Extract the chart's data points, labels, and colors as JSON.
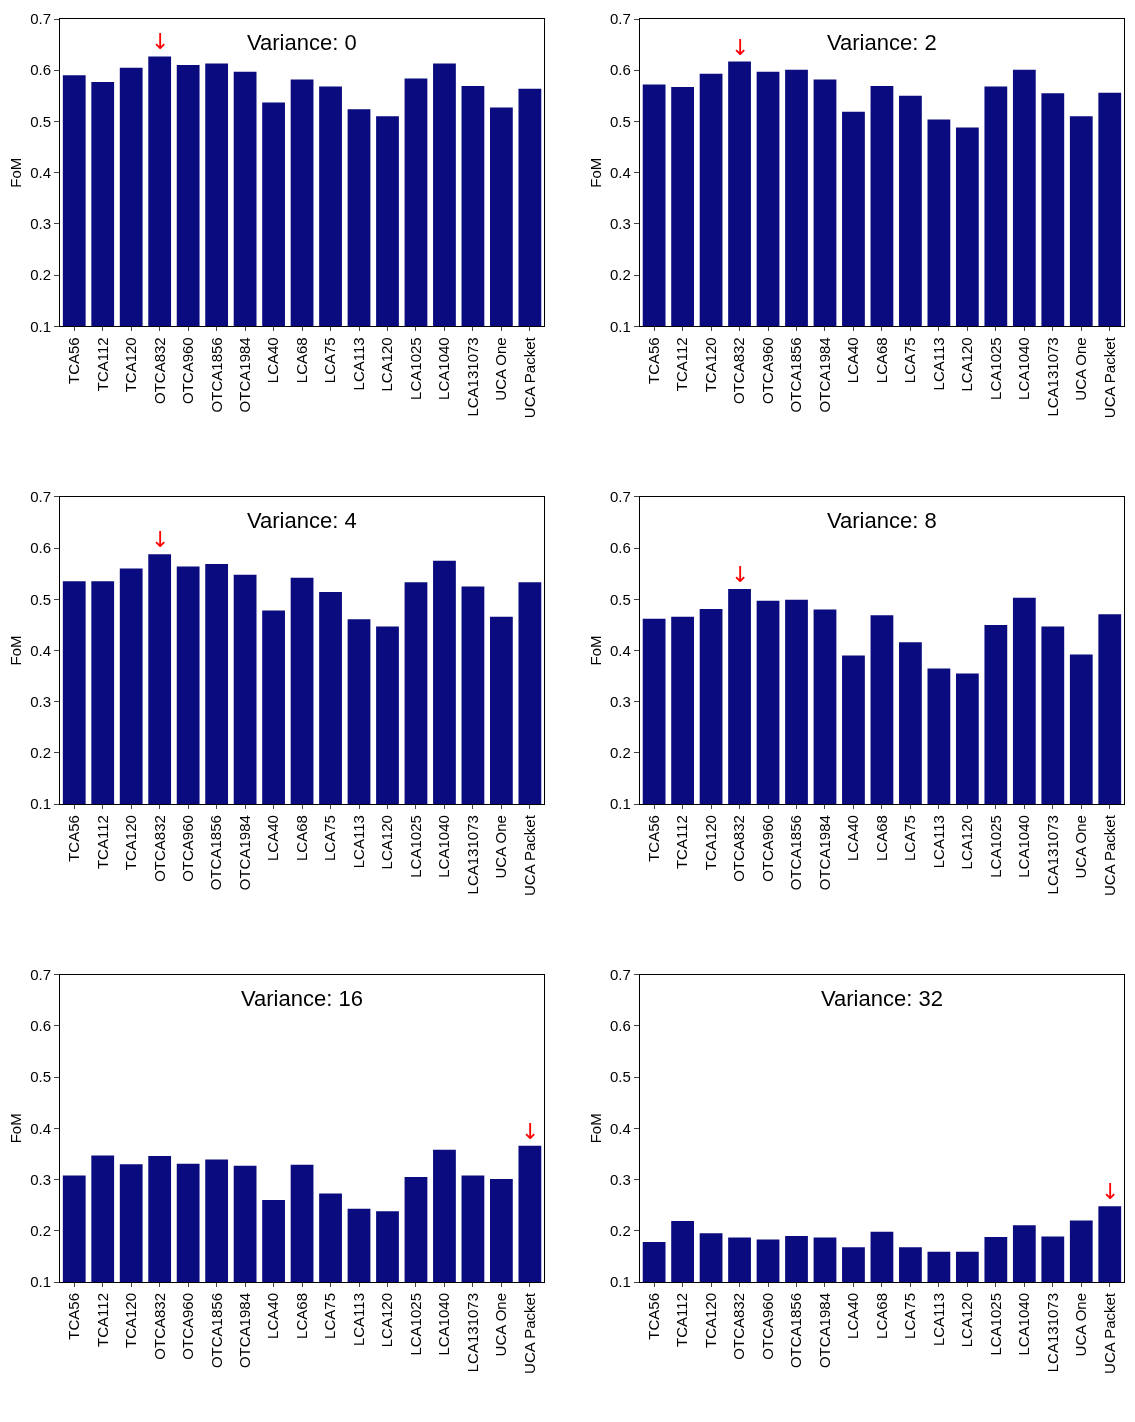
{
  "chart_data": [
    {
      "type": "bar",
      "title": "Variance: 0",
      "ylabel": "FoM",
      "categories": [
        "TCA56",
        "TCA112",
        "TCA120",
        "OTCA832",
        "OTCA960",
        "OTCA1856",
        "OTCA1984",
        "LCA40",
        "LCA68",
        "LCA75",
        "LCA113",
        "LCA120",
        "LCA1025",
        "LCA1040",
        "LCA131073",
        "UCA One",
        "UCA Packet"
      ],
      "values": [
        0.59,
        0.577,
        0.605,
        0.627,
        0.61,
        0.613,
        0.597,
        0.537,
        0.582,
        0.568,
        0.524,
        0.51,
        0.584,
        0.613,
        0.569,
        0.527,
        0.564
      ],
      "color": "#0b0b80",
      "ylim": [
        0.1,
        0.7
      ],
      "yticks": [
        0.1,
        0.2,
        0.3,
        0.4,
        0.5,
        0.6,
        0.7
      ],
      "annotations": [
        {
          "text": "↓",
          "x": "OTCA832",
          "y": 0.627
        }
      ]
    },
    {
      "type": "bar",
      "title": "Variance: 2",
      "ylabel": "FoM",
      "categories": [
        "TCA56",
        "TCA112",
        "TCA120",
        "OTCA832",
        "OTCA960",
        "OTCA1856",
        "OTCA1984",
        "LCA40",
        "LCA68",
        "LCA75",
        "LCA113",
        "LCA120",
        "LCA1025",
        "LCA1040",
        "LCA131073",
        "UCA One",
        "UCA Packet"
      ],
      "values": [
        0.572,
        0.567,
        0.593,
        0.617,
        0.597,
        0.601,
        0.582,
        0.519,
        0.569,
        0.55,
        0.504,
        0.488,
        0.568,
        0.601,
        0.555,
        0.51,
        0.556
      ],
      "color": "#0b0b80",
      "ylim": [
        0.1,
        0.7
      ],
      "yticks": [
        0.1,
        0.2,
        0.3,
        0.4,
        0.5,
        0.6,
        0.7
      ],
      "annotations": [
        {
          "text": "↓",
          "x": "OTCA832",
          "y": 0.617
        }
      ]
    },
    {
      "type": "bar",
      "title": "Variance: 4",
      "ylabel": "FoM",
      "categories": [
        "TCA56",
        "TCA112",
        "TCA120",
        "OTCA832",
        "OTCA960",
        "OTCA1856",
        "OTCA1984",
        "LCA40",
        "LCA68",
        "LCA75",
        "LCA113",
        "LCA120",
        "LCA1025",
        "LCA1040",
        "LCA131073",
        "UCA One",
        "UCA Packet"
      ],
      "values": [
        0.535,
        0.535,
        0.56,
        0.588,
        0.564,
        0.569,
        0.548,
        0.478,
        0.542,
        0.514,
        0.461,
        0.447,
        0.533,
        0.575,
        0.525,
        0.466,
        0.533
      ],
      "color": "#0b0b80",
      "ylim": [
        0.1,
        0.7
      ],
      "yticks": [
        0.1,
        0.2,
        0.3,
        0.4,
        0.5,
        0.6,
        0.7
      ],
      "annotations": [
        {
          "text": "↓",
          "x": "OTCA832",
          "y": 0.588
        }
      ]
    },
    {
      "type": "bar",
      "title": "Variance: 8",
      "ylabel": "FoM",
      "categories": [
        "TCA56",
        "TCA112",
        "TCA120",
        "OTCA832",
        "OTCA960",
        "OTCA1856",
        "OTCA1984",
        "LCA40",
        "LCA68",
        "LCA75",
        "LCA113",
        "LCA120",
        "LCA1025",
        "LCA1040",
        "LCA131073",
        "UCA One",
        "UCA Packet"
      ],
      "values": [
        0.462,
        0.466,
        0.481,
        0.52,
        0.497,
        0.499,
        0.48,
        0.39,
        0.469,
        0.416,
        0.365,
        0.355,
        0.45,
        0.503,
        0.447,
        0.392,
        0.471
      ],
      "color": "#0b0b80",
      "ylim": [
        0.1,
        0.7
      ],
      "yticks": [
        0.1,
        0.2,
        0.3,
        0.4,
        0.5,
        0.6,
        0.7
      ],
      "annotations": [
        {
          "text": "↓",
          "x": "OTCA832",
          "y": 0.52
        }
      ]
    },
    {
      "type": "bar",
      "title": "Variance: 16",
      "ylabel": "FoM",
      "categories": [
        "TCA56",
        "TCA112",
        "TCA120",
        "OTCA832",
        "OTCA960",
        "OTCA1856",
        "OTCA1984",
        "LCA40",
        "LCA68",
        "LCA75",
        "LCA113",
        "LCA120",
        "LCA1025",
        "LCA1040",
        "LCA131073",
        "UCA One",
        "UCA Packet"
      ],
      "values": [
        0.308,
        0.347,
        0.33,
        0.346,
        0.331,
        0.339,
        0.327,
        0.26,
        0.329,
        0.273,
        0.243,
        0.238,
        0.305,
        0.358,
        0.308,
        0.301,
        0.366
      ],
      "color": "#0b0b80",
      "ylim": [
        0.1,
        0.7
      ],
      "yticks": [
        0.1,
        0.2,
        0.3,
        0.4,
        0.5,
        0.6,
        0.7
      ],
      "annotations": [
        {
          "text": "↓",
          "x": "UCA Packet",
          "y": 0.366
        }
      ]
    },
    {
      "type": "bar",
      "title": "Variance: 32",
      "ylabel": "FoM",
      "categories": [
        "TCA56",
        "TCA112",
        "TCA120",
        "OTCA832",
        "OTCA960",
        "OTCA1856",
        "OTCA1984",
        "LCA40",
        "LCA68",
        "LCA75",
        "LCA113",
        "LCA120",
        "LCA1025",
        "LCA1040",
        "LCA131073",
        "UCA One",
        "UCA Packet"
      ],
      "values": [
        0.178,
        0.219,
        0.195,
        0.187,
        0.183,
        0.19,
        0.187,
        0.168,
        0.198,
        0.168,
        0.159,
        0.159,
        0.188,
        0.211,
        0.189,
        0.22,
        0.248
      ],
      "color": "#0b0b80",
      "ylim": [
        0.1,
        0.7
      ],
      "yticks": [
        0.1,
        0.2,
        0.3,
        0.4,
        0.5,
        0.6,
        0.7
      ],
      "annotations": [
        {
          "text": "↓",
          "x": "UCA Packet",
          "y": 0.248
        }
      ]
    }
  ]
}
